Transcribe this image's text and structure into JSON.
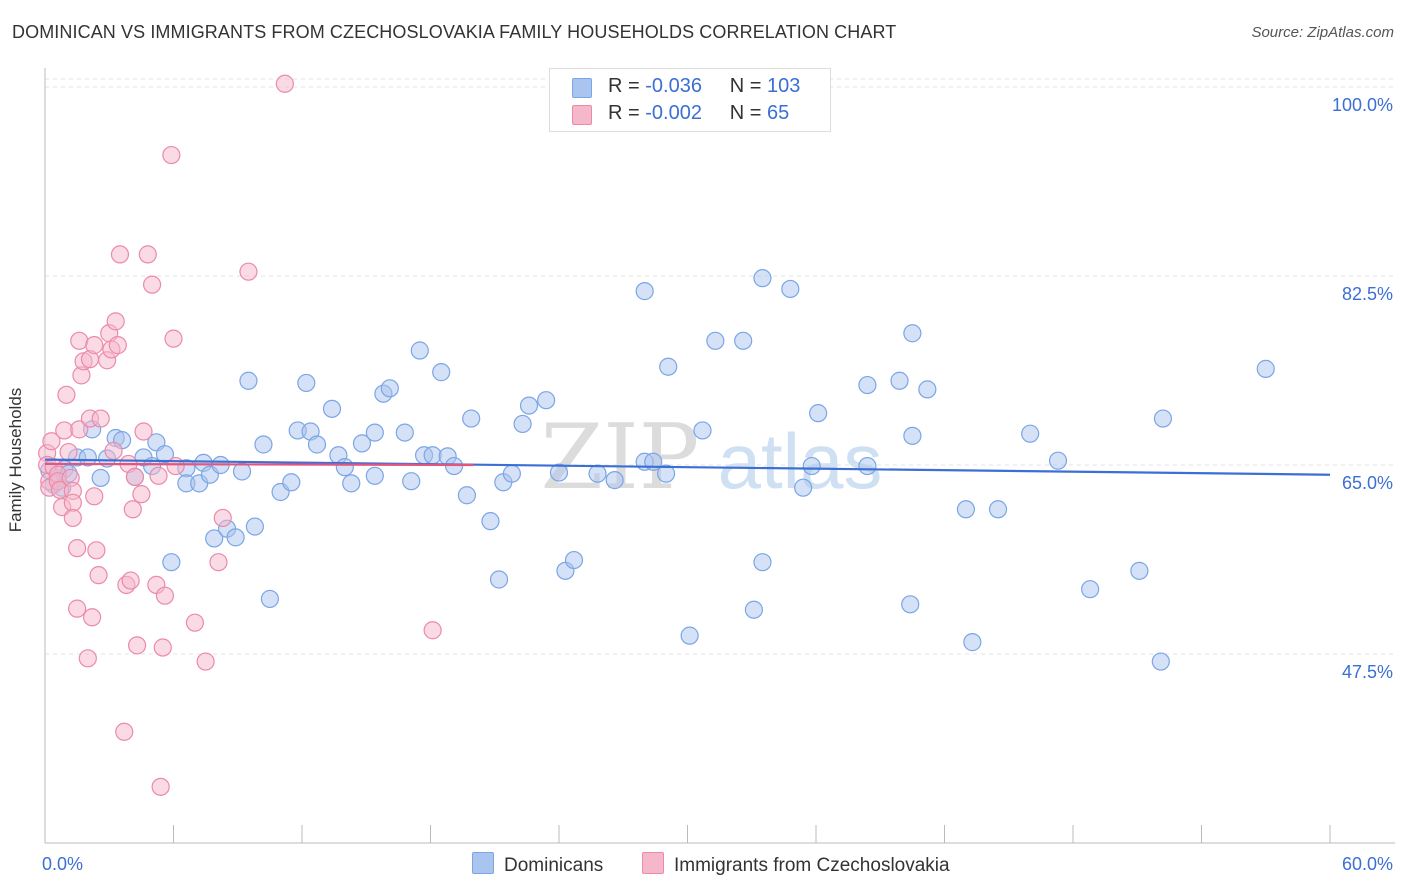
{
  "title": "DOMINICAN VS IMMIGRANTS FROM CZECHOSLOVAKIA FAMILY HOUSEHOLDS CORRELATION CHART",
  "source": "Source: ZipAtlas.com",
  "watermark": {
    "zip": "ZIP",
    "atlas": "atlas"
  },
  "legend": {
    "rows": [
      {
        "r_label": "R =",
        "r_value": "-0.036",
        "n_label": "N =",
        "n_value": "103",
        "color": "#a9c4ee"
      },
      {
        "r_label": "R =",
        "r_value": "-0.002",
        "n_label": "N =",
        "n_value": "65",
        "color": "#f5b8cb"
      }
    ]
  },
  "colors": {
    "blue": "#7aa6e6",
    "blue_fill": "#a9c4ee",
    "blue_line": "#3b6fd4",
    "pink": "#ec8aa8",
    "pink_fill": "#f5b8cb",
    "pink_line": "#e0567f",
    "axis_text": "#3b6fd4",
    "grid": "#e3e3e3"
  },
  "chart_data": {
    "type": "scatter",
    "title": "DOMINICAN VS IMMIGRANTS FROM CZECHOSLOVAKIA FAMILY HOUSEHOLDS CORRELATION CHART",
    "xlabel": "",
    "ylabel": "Family Households",
    "xlim": [
      0,
      60
    ],
    "ylim": [
      30,
      102.5
    ],
    "x_tick_labels": [
      "0.0%",
      "60.0%"
    ],
    "y_ticks": [
      47.5,
      65.0,
      82.5,
      100.0
    ],
    "y_tick_labels": [
      "47.5%",
      "65.0%",
      "82.5%",
      "100.0%"
    ],
    "grid": true,
    "legend_position": "top-center",
    "series": [
      {
        "name": "Dominicans",
        "r": -0.036,
        "n": 103,
        "trend": {
          "x": [
            0,
            60
          ],
          "y": [
            65.5,
            64.1
          ]
        },
        "points": [
          [
            0.2,
            64.5
          ],
          [
            0.4,
            63.2
          ],
          [
            0.6,
            63.8
          ],
          [
            0.8,
            62.9
          ],
          [
            0.9,
            64.6
          ],
          [
            1.1,
            64.2
          ],
          [
            1.5,
            65.7
          ],
          [
            2.0,
            65.7
          ],
          [
            2.2,
            68.3
          ],
          [
            2.6,
            63.8
          ],
          [
            2.9,
            65.6
          ],
          [
            3.3,
            67.5
          ],
          [
            3.6,
            67.3
          ],
          [
            4.2,
            63.9
          ],
          [
            4.6,
            65.7
          ],
          [
            5.0,
            64.9
          ],
          [
            5.2,
            67.1
          ],
          [
            5.6,
            66.0
          ],
          [
            5.9,
            56.0
          ],
          [
            6.6,
            64.7
          ],
          [
            6.6,
            63.3
          ],
          [
            7.2,
            63.3
          ],
          [
            7.4,
            65.2
          ],
          [
            7.7,
            64.1
          ],
          [
            7.9,
            58.2
          ],
          [
            8.2,
            65.0
          ],
          [
            8.5,
            59.1
          ],
          [
            8.9,
            58.3
          ],
          [
            9.2,
            64.4
          ],
          [
            9.5,
            72.8
          ],
          [
            9.8,
            59.3
          ],
          [
            10.2,
            66.9
          ],
          [
            10.5,
            52.6
          ],
          [
            11.0,
            62.5
          ],
          [
            11.5,
            63.4
          ],
          [
            11.8,
            68.2
          ],
          [
            12.2,
            72.6
          ],
          [
            12.4,
            68.1
          ],
          [
            12.7,
            66.9
          ],
          [
            13.4,
            70.2
          ],
          [
            13.7,
            65.9
          ],
          [
            14.0,
            64.8
          ],
          [
            14.3,
            63.3
          ],
          [
            14.8,
            67.0
          ],
          [
            15.4,
            68.0
          ],
          [
            15.4,
            64.0
          ],
          [
            15.8,
            71.6
          ],
          [
            16.1,
            72.1
          ],
          [
            16.8,
            68.0
          ],
          [
            17.1,
            63.5
          ],
          [
            17.5,
            75.6
          ],
          [
            17.7,
            65.9
          ],
          [
            18.1,
            65.9
          ],
          [
            18.5,
            73.6
          ],
          [
            18.8,
            65.8
          ],
          [
            19.1,
            64.9
          ],
          [
            19.7,
            62.2
          ],
          [
            19.9,
            69.3
          ],
          [
            20.8,
            59.8
          ],
          [
            21.2,
            54.4
          ],
          [
            21.4,
            63.4
          ],
          [
            21.8,
            64.2
          ],
          [
            22.3,
            68.8
          ],
          [
            22.6,
            70.5
          ],
          [
            23.4,
            71.0
          ],
          [
            24.0,
            64.3
          ],
          [
            24.3,
            55.2
          ],
          [
            24.7,
            56.2
          ],
          [
            25.8,
            64.2
          ],
          [
            26.6,
            63.6
          ],
          [
            28.0,
            81.1
          ],
          [
            28.0,
            65.3
          ],
          [
            28.4,
            65.3
          ],
          [
            29.0,
            64.2
          ],
          [
            29.1,
            74.1
          ],
          [
            30.1,
            49.2
          ],
          [
            30.7,
            68.2
          ],
          [
            31.3,
            76.5
          ],
          [
            32.6,
            76.5
          ],
          [
            33.1,
            51.6
          ],
          [
            33.5,
            56.0
          ],
          [
            33.5,
            82.3
          ],
          [
            34.8,
            81.3
          ],
          [
            35.4,
            62.9
          ],
          [
            35.8,
            64.9
          ],
          [
            36.1,
            69.8
          ],
          [
            38.4,
            72.4
          ],
          [
            38.4,
            64.9
          ],
          [
            39.9,
            72.8
          ],
          [
            40.4,
            52.1
          ],
          [
            40.5,
            77.2
          ],
          [
            40.5,
            67.7
          ],
          [
            41.2,
            72.0
          ],
          [
            43.0,
            60.9
          ],
          [
            43.3,
            48.6
          ],
          [
            44.5,
            60.9
          ],
          [
            46.0,
            67.9
          ],
          [
            47.3,
            65.4
          ],
          [
            48.8,
            53.5
          ],
          [
            51.1,
            55.2
          ],
          [
            52.1,
            46.8
          ],
          [
            52.2,
            69.3
          ],
          [
            57.0,
            73.9
          ]
        ]
      },
      {
        "name": "Immigrants from Czechoslovakia",
        "r": -0.002,
        "n": 65,
        "trend": {
          "x": [
            0,
            20
          ],
          "y": [
            65.1,
            65.0
          ]
        },
        "points": [
          [
            0.1,
            66.1
          ],
          [
            0.1,
            65.0
          ],
          [
            0.2,
            63.5
          ],
          [
            0.2,
            62.9
          ],
          [
            0.3,
            67.2
          ],
          [
            0.4,
            64.8
          ],
          [
            0.6,
            64.1
          ],
          [
            0.6,
            63.5
          ],
          [
            0.7,
            62.7
          ],
          [
            0.8,
            61.1
          ],
          [
            0.9,
            68.2
          ],
          [
            1.0,
            71.5
          ],
          [
            1.1,
            66.2
          ],
          [
            1.2,
            63.8
          ],
          [
            1.3,
            62.6
          ],
          [
            1.3,
            61.5
          ],
          [
            1.3,
            60.1
          ],
          [
            1.5,
            57.3
          ],
          [
            1.5,
            51.7
          ],
          [
            1.6,
            76.5
          ],
          [
            1.6,
            68.3
          ],
          [
            1.7,
            73.3
          ],
          [
            1.8,
            74.6
          ],
          [
            2.0,
            47.1
          ],
          [
            2.1,
            69.3
          ],
          [
            2.1,
            74.8
          ],
          [
            2.2,
            50.9
          ],
          [
            2.3,
            62.1
          ],
          [
            2.3,
            76.1
          ],
          [
            2.4,
            57.1
          ],
          [
            2.5,
            54.8
          ],
          [
            2.6,
            69.3
          ],
          [
            2.9,
            74.7
          ],
          [
            3.0,
            77.2
          ],
          [
            3.1,
            75.7
          ],
          [
            3.2,
            66.3
          ],
          [
            3.3,
            78.3
          ],
          [
            3.4,
            76.1
          ],
          [
            3.5,
            84.5
          ],
          [
            3.7,
            40.3
          ],
          [
            3.8,
            53.9
          ],
          [
            3.9,
            65.1
          ],
          [
            4.0,
            54.3
          ],
          [
            4.1,
            60.9
          ],
          [
            4.2,
            63.9
          ],
          [
            4.3,
            48.3
          ],
          [
            4.5,
            62.3
          ],
          [
            4.6,
            68.1
          ],
          [
            4.8,
            84.5
          ],
          [
            5.0,
            81.7
          ],
          [
            5.2,
            53.9
          ],
          [
            5.3,
            64.0
          ],
          [
            5.4,
            35.2
          ],
          [
            5.5,
            48.1
          ],
          [
            5.6,
            52.9
          ],
          [
            5.9,
            93.7
          ],
          [
            6.0,
            76.7
          ],
          [
            6.1,
            64.9
          ],
          [
            7.0,
            50.4
          ],
          [
            7.5,
            46.8
          ],
          [
            8.1,
            56.0
          ],
          [
            8.3,
            60.1
          ],
          [
            9.5,
            82.9
          ],
          [
            11.2,
            100.3
          ],
          [
            18.1,
            49.7
          ]
        ]
      }
    ]
  },
  "axis_labels": {
    "x_min": "0.0%",
    "x_max": "60.0%",
    "ylabel": "Family Households"
  }
}
